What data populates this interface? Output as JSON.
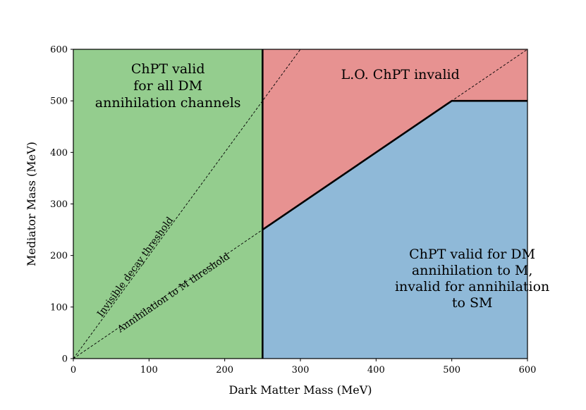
{
  "chart_data": {
    "type": "area",
    "xlabel": "Dark Matter Mass (MeV)",
    "ylabel": "Mediator Mass (MeV)",
    "xlim": [
      0,
      600
    ],
    "ylim": [
      0,
      600
    ],
    "x_ticks": [
      0,
      100,
      200,
      300,
      400,
      500,
      600
    ],
    "y_ticks": [
      0,
      100,
      200,
      300,
      400,
      500,
      600
    ],
    "grid": false,
    "colors": {
      "green": "#94cd8e",
      "red": "#e79291",
      "blue": "#8fb9d8"
    },
    "regions": [
      {
        "id": "green",
        "text": [
          "ChPT valid",
          "for all DM",
          "annihilation channels"
        ],
        "polygon": [
          [
            0,
            0
          ],
          [
            250,
            0
          ],
          [
            250,
            600
          ],
          [
            0,
            600
          ]
        ]
      },
      {
        "id": "red",
        "text": [
          "L.O. ChPT invalid"
        ],
        "polygon": [
          [
            250,
            250
          ],
          [
            500,
            500
          ],
          [
            600,
            500
          ],
          [
            600,
            600
          ],
          [
            250,
            600
          ]
        ]
      },
      {
        "id": "blue",
        "text": [
          "ChPT valid for DM",
          "annihilation to M,",
          "invalid for annihilation",
          "to SM"
        ],
        "polygon": [
          [
            250,
            0
          ],
          [
            600,
            0
          ],
          [
            600,
            500
          ],
          [
            500,
            500
          ],
          [
            250,
            250
          ]
        ]
      }
    ],
    "boundaries": [
      [
        [
          250,
          0
        ],
        [
          250,
          600
        ]
      ],
      [
        [
          250,
          250
        ],
        [
          500,
          500
        ],
        [
          600,
          500
        ]
      ]
    ],
    "threshold_lines": [
      {
        "label": "Invisible decay threshold",
        "slope": 2
      },
      {
        "label": "Annihilation to M threshold",
        "slope": 1
      }
    ]
  }
}
